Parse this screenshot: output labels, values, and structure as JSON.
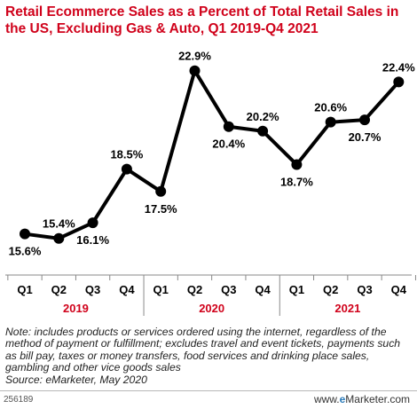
{
  "chart_data": {
    "type": "line",
    "title": "Retail Ecommerce Sales as a Percent of Total Retail Sales in the US, Excluding Gas & Auto, Q1 2019-Q4 2021",
    "categories": [
      "Q1",
      "Q2",
      "Q3",
      "Q4",
      "Q1",
      "Q2",
      "Q3",
      "Q4",
      "Q1",
      "Q2",
      "Q3",
      "Q4"
    ],
    "years": [
      "2019",
      "2020",
      "2021"
    ],
    "values": [
      15.6,
      15.4,
      16.1,
      18.5,
      17.5,
      22.9,
      20.4,
      20.2,
      18.7,
      20.6,
      20.7,
      22.4
    ],
    "labels": [
      "15.6%",
      "15.4%",
      "16.1%",
      "18.5%",
      "17.5%",
      "22.9%",
      "20.4%",
      "20.2%",
      "18.7%",
      "20.6%",
      "20.7%",
      "22.4%"
    ],
    "ylim": [
      14,
      24
    ],
    "grid": false,
    "legend": "none",
    "colors": {
      "line": "#000000",
      "title": "#d0021b",
      "year": "#d0021b",
      "axis": "#888888"
    }
  },
  "note": "Note: includes products or services ordered using the internet, regardless of the method of payment or fulfillment; excludes travel and event tickets, payments such as bill pay, taxes or money transfers, food services and drinking place sales, gambling and other vice goods sales",
  "source": "Source: eMarketer, May 2020",
  "footer": {
    "id": "256189",
    "brand_prefix": "www.",
    "brand_e": "e",
    "brand_rest": "Marketer",
    "brand_suffix": ".com"
  }
}
